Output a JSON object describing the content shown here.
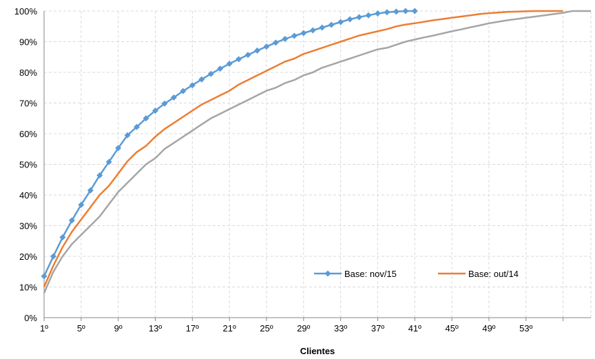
{
  "chart_data": {
    "type": "line",
    "title": "",
    "xlabel": "Clientes",
    "ylabel": "",
    "xlim": [
      1,
      60
    ],
    "ylim": [
      0,
      100
    ],
    "y_ticks": [
      0,
      10,
      20,
      30,
      40,
      50,
      60,
      70,
      80,
      90,
      100
    ],
    "y_tick_labels": [
      "0%",
      "10%",
      "20%",
      "30%",
      "40%",
      "50%",
      "60%",
      "70%",
      "80%",
      "90%",
      "100%"
    ],
    "x_ticks": [
      1,
      5,
      9,
      13,
      17,
      21,
      25,
      29,
      33,
      37,
      41,
      45,
      49,
      53
    ],
    "x_tick_labels": [
      "1º",
      "5º",
      "9º",
      "13º",
      "17º",
      "21º",
      "25º",
      "29º",
      "33º",
      "37º",
      "41º",
      "45º",
      "49º",
      "53º"
    ],
    "grid": true,
    "legend_position": "bottom-right",
    "series": [
      {
        "name": "Base: nov/15",
        "color": "#5b9bd5",
        "marker": "diamond",
        "x": [
          1,
          2,
          3,
          4,
          5,
          6,
          7,
          8,
          9,
          10,
          11,
          12,
          13,
          14,
          15,
          16,
          17,
          18,
          19,
          20,
          21,
          22,
          23,
          24,
          25,
          26,
          27,
          28,
          29,
          30,
          31,
          32,
          33,
          34,
          35,
          36,
          37,
          38,
          39,
          40,
          41
        ],
        "values": [
          13.5,
          20.0,
          26.2,
          31.7,
          36.8,
          41.5,
          46.4,
          50.8,
          55.3,
          59.5,
          62.2,
          65.0,
          67.5,
          69.8,
          71.8,
          73.9,
          75.8,
          77.7,
          79.5,
          81.2,
          82.8,
          84.3,
          85.7,
          87.1,
          88.4,
          89.7,
          90.9,
          91.9,
          92.8,
          93.7,
          94.6,
          95.5,
          96.4,
          97.3,
          98.0,
          98.6,
          99.2,
          99.6,
          99.8,
          100,
          100
        ]
      },
      {
        "name": "Base: out/14",
        "color": "#ed7d31",
        "x": [
          1,
          2,
          3,
          4,
          5,
          6,
          7,
          8,
          9,
          10,
          11,
          12,
          13,
          14,
          15,
          16,
          17,
          18,
          19,
          20,
          21,
          22,
          23,
          24,
          25,
          26,
          27,
          28,
          29,
          30,
          31,
          32,
          33,
          34,
          35,
          36,
          37,
          38,
          39,
          40,
          41,
          42,
          43,
          44,
          45,
          46,
          47,
          48,
          49,
          50,
          51,
          52,
          53,
          54,
          55,
          56,
          57
        ],
        "values": [
          10,
          17,
          23,
          28,
          32,
          36,
          40,
          43,
          47,
          51,
          54,
          56,
          59,
          61.5,
          63.5,
          65.5,
          67.5,
          69.5,
          71,
          72.5,
          74,
          76,
          77.5,
          79,
          80.5,
          82,
          83.5,
          84.5,
          86,
          87,
          88,
          89,
          90,
          91,
          92,
          92.7,
          93.4,
          94.1,
          95,
          95.6,
          96,
          96.5,
          97,
          97.4,
          97.8,
          98.2,
          98.6,
          99,
          99.3,
          99.5,
          99.7,
          99.8,
          99.9,
          100,
          100,
          100,
          100
        ]
      },
      {
        "name": "",
        "color": "#a5a5a5",
        "x": [
          1,
          2,
          3,
          4,
          5,
          6,
          7,
          8,
          9,
          10,
          11,
          12,
          13,
          14,
          15,
          16,
          17,
          18,
          19,
          20,
          21,
          22,
          23,
          24,
          25,
          26,
          27,
          28,
          29,
          30,
          31,
          32,
          33,
          34,
          35,
          36,
          37,
          38,
          39,
          40,
          41,
          42,
          43,
          44,
          45,
          46,
          47,
          48,
          49,
          50,
          51,
          52,
          53,
          54,
          55,
          56,
          57,
          58,
          59,
          60
        ],
        "values": [
          8,
          15,
          20,
          24,
          27,
          30,
          33,
          37,
          41,
          44,
          47,
          50,
          52,
          55,
          57,
          59,
          61,
          63,
          65,
          66.5,
          68,
          69.5,
          71,
          72.5,
          74,
          75,
          76.5,
          77.5,
          79,
          80,
          81.5,
          82.5,
          83.5,
          84.5,
          85.5,
          86.5,
          87.5,
          88,
          89,
          90,
          90.7,
          91.4,
          92,
          92.7,
          93.4,
          94,
          94.7,
          95.3,
          96,
          96.5,
          97,
          97.4,
          97.8,
          98.2,
          98.6,
          99,
          99.4,
          100,
          100,
          100
        ]
      }
    ]
  }
}
